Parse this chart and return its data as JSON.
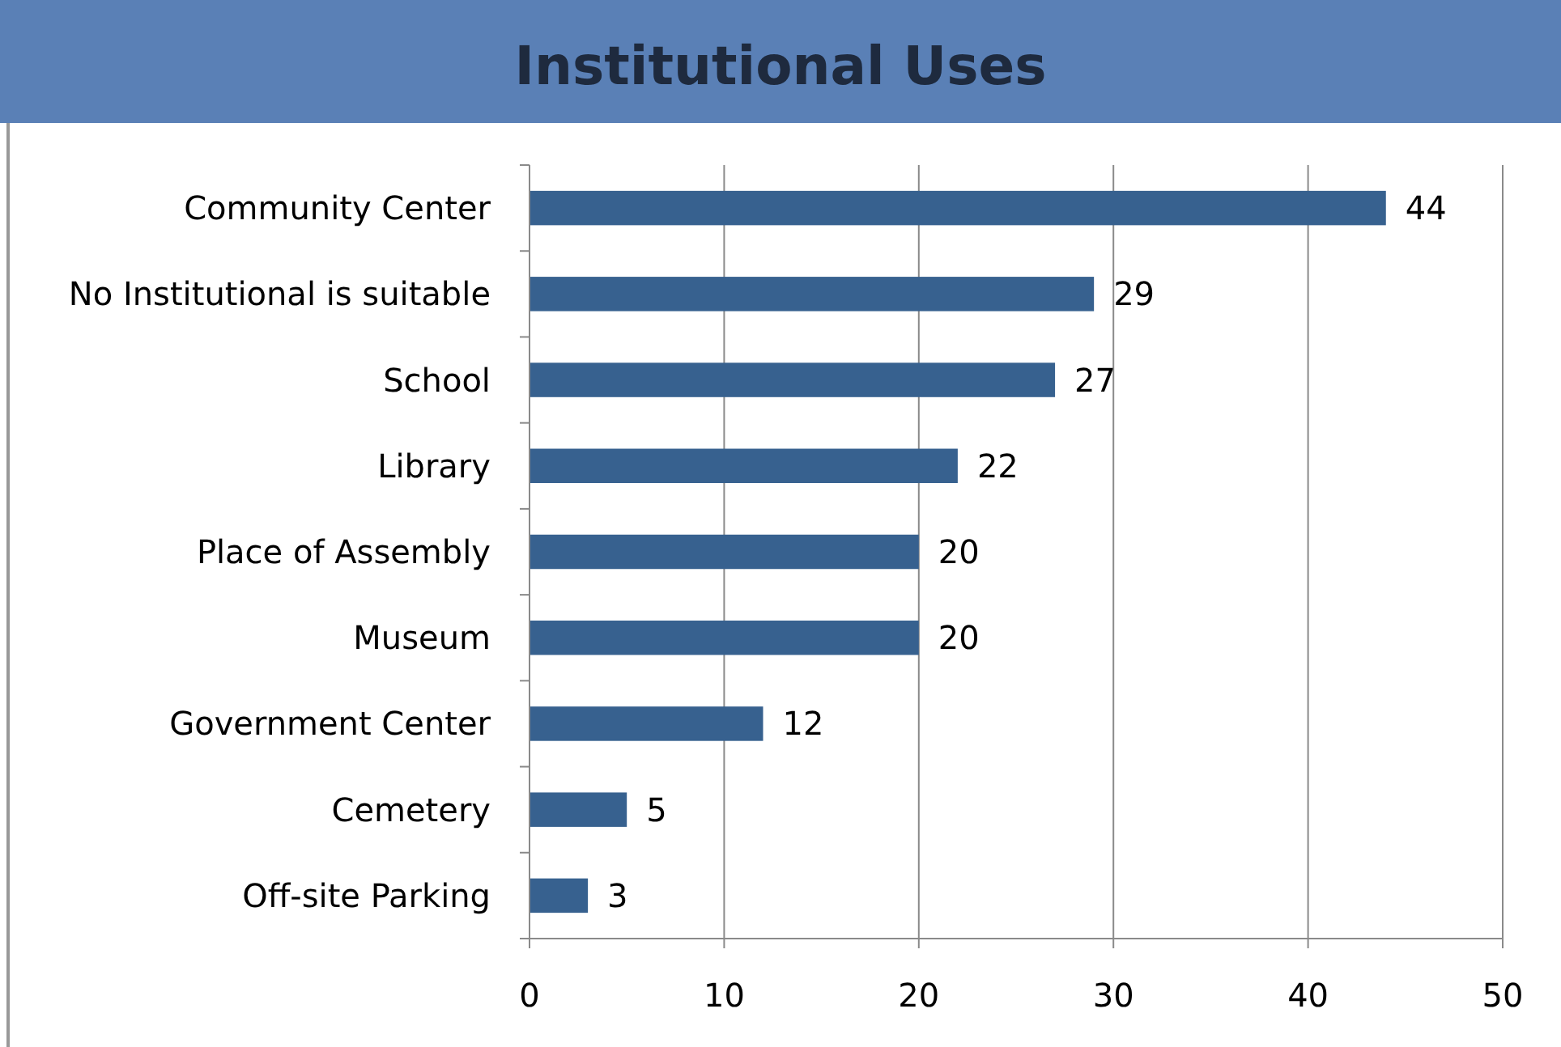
{
  "chart_data": {
    "type": "bar",
    "orientation": "horizontal",
    "title": "Institutional Uses",
    "categories": [
      "Community Center",
      "No Institutional is suitable",
      "School",
      "Library",
      "Place of Assembly",
      "Museum",
      "Government Center",
      "Cemetery",
      "Off-site Parking"
    ],
    "values": [
      44,
      29,
      27,
      22,
      20,
      20,
      12,
      5,
      3
    ],
    "color": "#37618f",
    "xlim": [
      0,
      50
    ],
    "xticks": [
      0,
      10,
      20,
      30,
      40,
      50
    ],
    "grid": "x",
    "data_labels": true
  }
}
